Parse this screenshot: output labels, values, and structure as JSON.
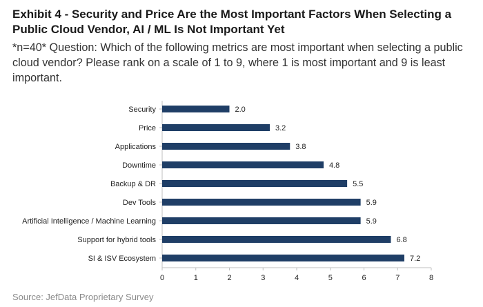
{
  "header": {
    "title": "Exhibit 4 - Security and Price Are the Most Important Factors When Selecting a Public Cloud Vendor, AI / ML Is Not Important Yet",
    "subtitle": "*n=40* Question: Which of the following metrics are most important when selecting a public cloud vendor? Please rank on a scale of 1 to 9, where 1 is most important and 9 is least important."
  },
  "footer": {
    "source": "Source: JefData Proprietary Survey"
  },
  "colors": {
    "bar": "#1f3e66",
    "axis": "#bfbfbf",
    "text": "#222222"
  },
  "chart_data": {
    "type": "bar",
    "orientation": "horizontal",
    "categories": [
      "Security",
      "Price",
      "Applications",
      "Downtime",
      "Backup & DR",
      "Dev Tools",
      "Artificial Intelligence / Machine Learning",
      "Support for hybrid tools",
      "SI & ISV Ecosystem"
    ],
    "values": [
      2.0,
      3.2,
      3.8,
      4.8,
      5.5,
      5.9,
      5.9,
      6.8,
      7.2
    ],
    "value_labels": [
      "2.0",
      "3.2",
      "3.8",
      "4.8",
      "5.5",
      "5.9",
      "5.9",
      "6.8",
      "7.2"
    ],
    "xlim": [
      0,
      8
    ],
    "xticks": [
      "0",
      "1",
      "2",
      "3",
      "4",
      "5",
      "6",
      "7",
      "8"
    ],
    "grid": false,
    "legend": "none"
  }
}
